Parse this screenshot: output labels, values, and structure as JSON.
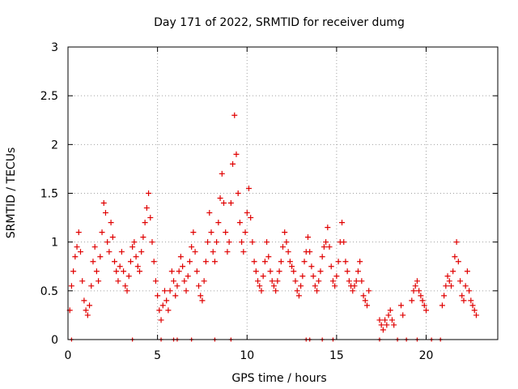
{
  "chart_data": {
    "type": "scatter",
    "title": "Day 171 of 2022, SRMTID for receiver dumg",
    "xlabel": "GPS time / hours",
    "ylabel": "SRMTID / TECUs",
    "xlim": [
      0,
      24.0
    ],
    "ylim": [
      0,
      3
    ],
    "xticks": [
      0,
      5,
      10,
      15,
      20
    ],
    "yticks": [
      0,
      0.5,
      1,
      1.5,
      2,
      2.5,
      3
    ],
    "xtick_labels": [
      "0",
      "5",
      "10",
      "15",
      "20"
    ],
    "ytick_labels": [
      "0",
      "0.5",
      "1",
      "1.5",
      "2",
      "2.5",
      "3"
    ],
    "grid": true,
    "marker": "+",
    "color": "#e00000",
    "series": [
      {
        "name": "SRMTID",
        "x": [
          0.1,
          0.2,
          0.3,
          0.4,
          0.5,
          0.6,
          0.7,
          0.8,
          0.9,
          1.0,
          1.1,
          1.2,
          1.3,
          1.4,
          1.5,
          1.6,
          1.7,
          1.8,
          1.9,
          2.0,
          2.1,
          2.2,
          2.3,
          2.4,
          2.5,
          2.6,
          2.7,
          2.8,
          2.9,
          3.0,
          3.1,
          3.2,
          3.3,
          3.4,
          3.5,
          3.6,
          3.7,
          3.8,
          3.9,
          4.0,
          4.1,
          4.2,
          4.3,
          4.4,
          4.5,
          4.6,
          4.7,
          4.8,
          4.9,
          5.0,
          5.1,
          5.2,
          5.3,
          5.4,
          5.5,
          5.6,
          5.7,
          5.8,
          5.9,
          6.0,
          6.1,
          6.2,
          6.3,
          6.4,
          6.5,
          6.6,
          6.7,
          6.8,
          6.9,
          7.0,
          7.1,
          7.2,
          7.3,
          7.4,
          7.5,
          7.6,
          7.7,
          7.8,
          7.9,
          8.0,
          8.1,
          8.2,
          8.3,
          8.4,
          8.5,
          8.6,
          8.7,
          8.8,
          8.9,
          9.0,
          9.1,
          9.2,
          9.3,
          9.4,
          9.5,
          9.6,
          9.7,
          9.8,
          9.9,
          10.0,
          10.1,
          10.2,
          10.3,
          10.4,
          10.5,
          10.6,
          10.7,
          10.8,
          10.9,
          11.0,
          11.1,
          11.2,
          11.3,
          11.4,
          11.5,
          11.6,
          11.7,
          11.8,
          11.9,
          12.0,
          12.1,
          12.2,
          12.3,
          12.4,
          12.5,
          12.6,
          12.7,
          12.8,
          12.9,
          13.0,
          13.1,
          13.2,
          13.3,
          13.4,
          13.5,
          13.6,
          13.7,
          13.8,
          13.9,
          14.0,
          14.1,
          14.2,
          14.3,
          14.4,
          14.5,
          14.6,
          14.7,
          14.8,
          14.9,
          15.0,
          15.1,
          15.2,
          15.3,
          15.4,
          15.5,
          15.6,
          15.7,
          15.8,
          15.9,
          16.0,
          16.1,
          16.2,
          16.3,
          16.4,
          16.5,
          16.6,
          16.7,
          16.8,
          17.4,
          17.5,
          17.6,
          17.7,
          17.8,
          17.9,
          18.0,
          18.1,
          18.2,
          18.6,
          18.7,
          19.2,
          19.3,
          19.4,
          19.5,
          19.6,
          19.7,
          19.8,
          19.9,
          20.0,
          20.9,
          21.0,
          21.1,
          21.2,
          21.3,
          21.4,
          21.5,
          21.6,
          21.7,
          21.8,
          21.9,
          22.0,
          22.1,
          22.2,
          22.3,
          22.4,
          22.5,
          22.6,
          22.7,
          22.8
        ],
        "y": [
          0.3,
          0.55,
          0.7,
          0.85,
          0.95,
          1.1,
          0.9,
          0.6,
          0.4,
          0.3,
          0.25,
          0.35,
          0.55,
          0.8,
          0.95,
          0.7,
          0.6,
          0.85,
          1.1,
          1.4,
          1.3,
          1.0,
          0.9,
          1.2,
          1.05,
          0.8,
          0.7,
          0.6,
          0.75,
          0.9,
          0.7,
          0.55,
          0.5,
          0.65,
          0.8,
          0.95,
          1.0,
          0.85,
          0.75,
          0.7,
          0.9,
          1.05,
          1.2,
          1.35,
          1.5,
          1.25,
          1.0,
          0.8,
          0.6,
          0.45,
          0.3,
          0.2,
          0.35,
          0.5,
          0.4,
          0.3,
          0.5,
          0.7,
          0.6,
          0.45,
          0.55,
          0.7,
          0.85,
          0.75,
          0.6,
          0.5,
          0.65,
          0.8,
          0.95,
          1.1,
          0.9,
          0.7,
          0.55,
          0.45,
          0.4,
          0.6,
          0.8,
          1.0,
          1.3,
          1.1,
          0.9,
          0.8,
          1.0,
          1.2,
          1.45,
          1.7,
          1.4,
          1.1,
          0.9,
          1.0,
          1.4,
          1.8,
          2.3,
          1.9,
          1.5,
          1.2,
          1.0,
          0.9,
          1.1,
          1.3,
          1.55,
          1.25,
          1.0,
          0.8,
          0.7,
          0.6,
          0.55,
          0.5,
          0.65,
          0.8,
          1.0,
          0.85,
          0.7,
          0.6,
          0.55,
          0.5,
          0.6,
          0.7,
          0.8,
          0.95,
          1.1,
          1.0,
          0.9,
          0.8,
          0.75,
          0.7,
          0.6,
          0.5,
          0.45,
          0.55,
          0.65,
          0.8,
          0.9,
          1.05,
          0.9,
          0.75,
          0.65,
          0.55,
          0.5,
          0.6,
          0.7,
          0.85,
          0.95,
          1.0,
          1.15,
          0.95,
          0.75,
          0.6,
          0.55,
          0.65,
          0.8,
          1.0,
          1.2,
          1.0,
          0.8,
          0.7,
          0.6,
          0.55,
          0.5,
          0.55,
          0.6,
          0.7,
          0.8,
          0.6,
          0.45,
          0.4,
          0.35,
          0.5,
          0.2,
          0.15,
          0.1,
          0.2,
          0.15,
          0.25,
          0.3,
          0.2,
          0.15,
          0.35,
          0.25,
          0.4,
          0.5,
          0.55,
          0.6,
          0.5,
          0.45,
          0.4,
          0.35,
          0.3,
          0.35,
          0.45,
          0.55,
          0.65,
          0.6,
          0.55,
          0.7,
          0.85,
          1.0,
          0.8,
          0.6,
          0.45,
          0.4,
          0.55,
          0.7,
          0.5,
          0.4,
          0.35,
          0.3,
          0.25
        ]
      }
    ],
    "zero_markers_x": [
      0.2,
      3.6,
      5.2,
      5.9,
      6.1,
      6.9,
      8.2,
      9.1,
      13.3,
      13.5,
      14.2,
      14.8,
      17.4,
      18.4,
      18.9,
      19.5,
      20.3,
      20.8
    ]
  }
}
